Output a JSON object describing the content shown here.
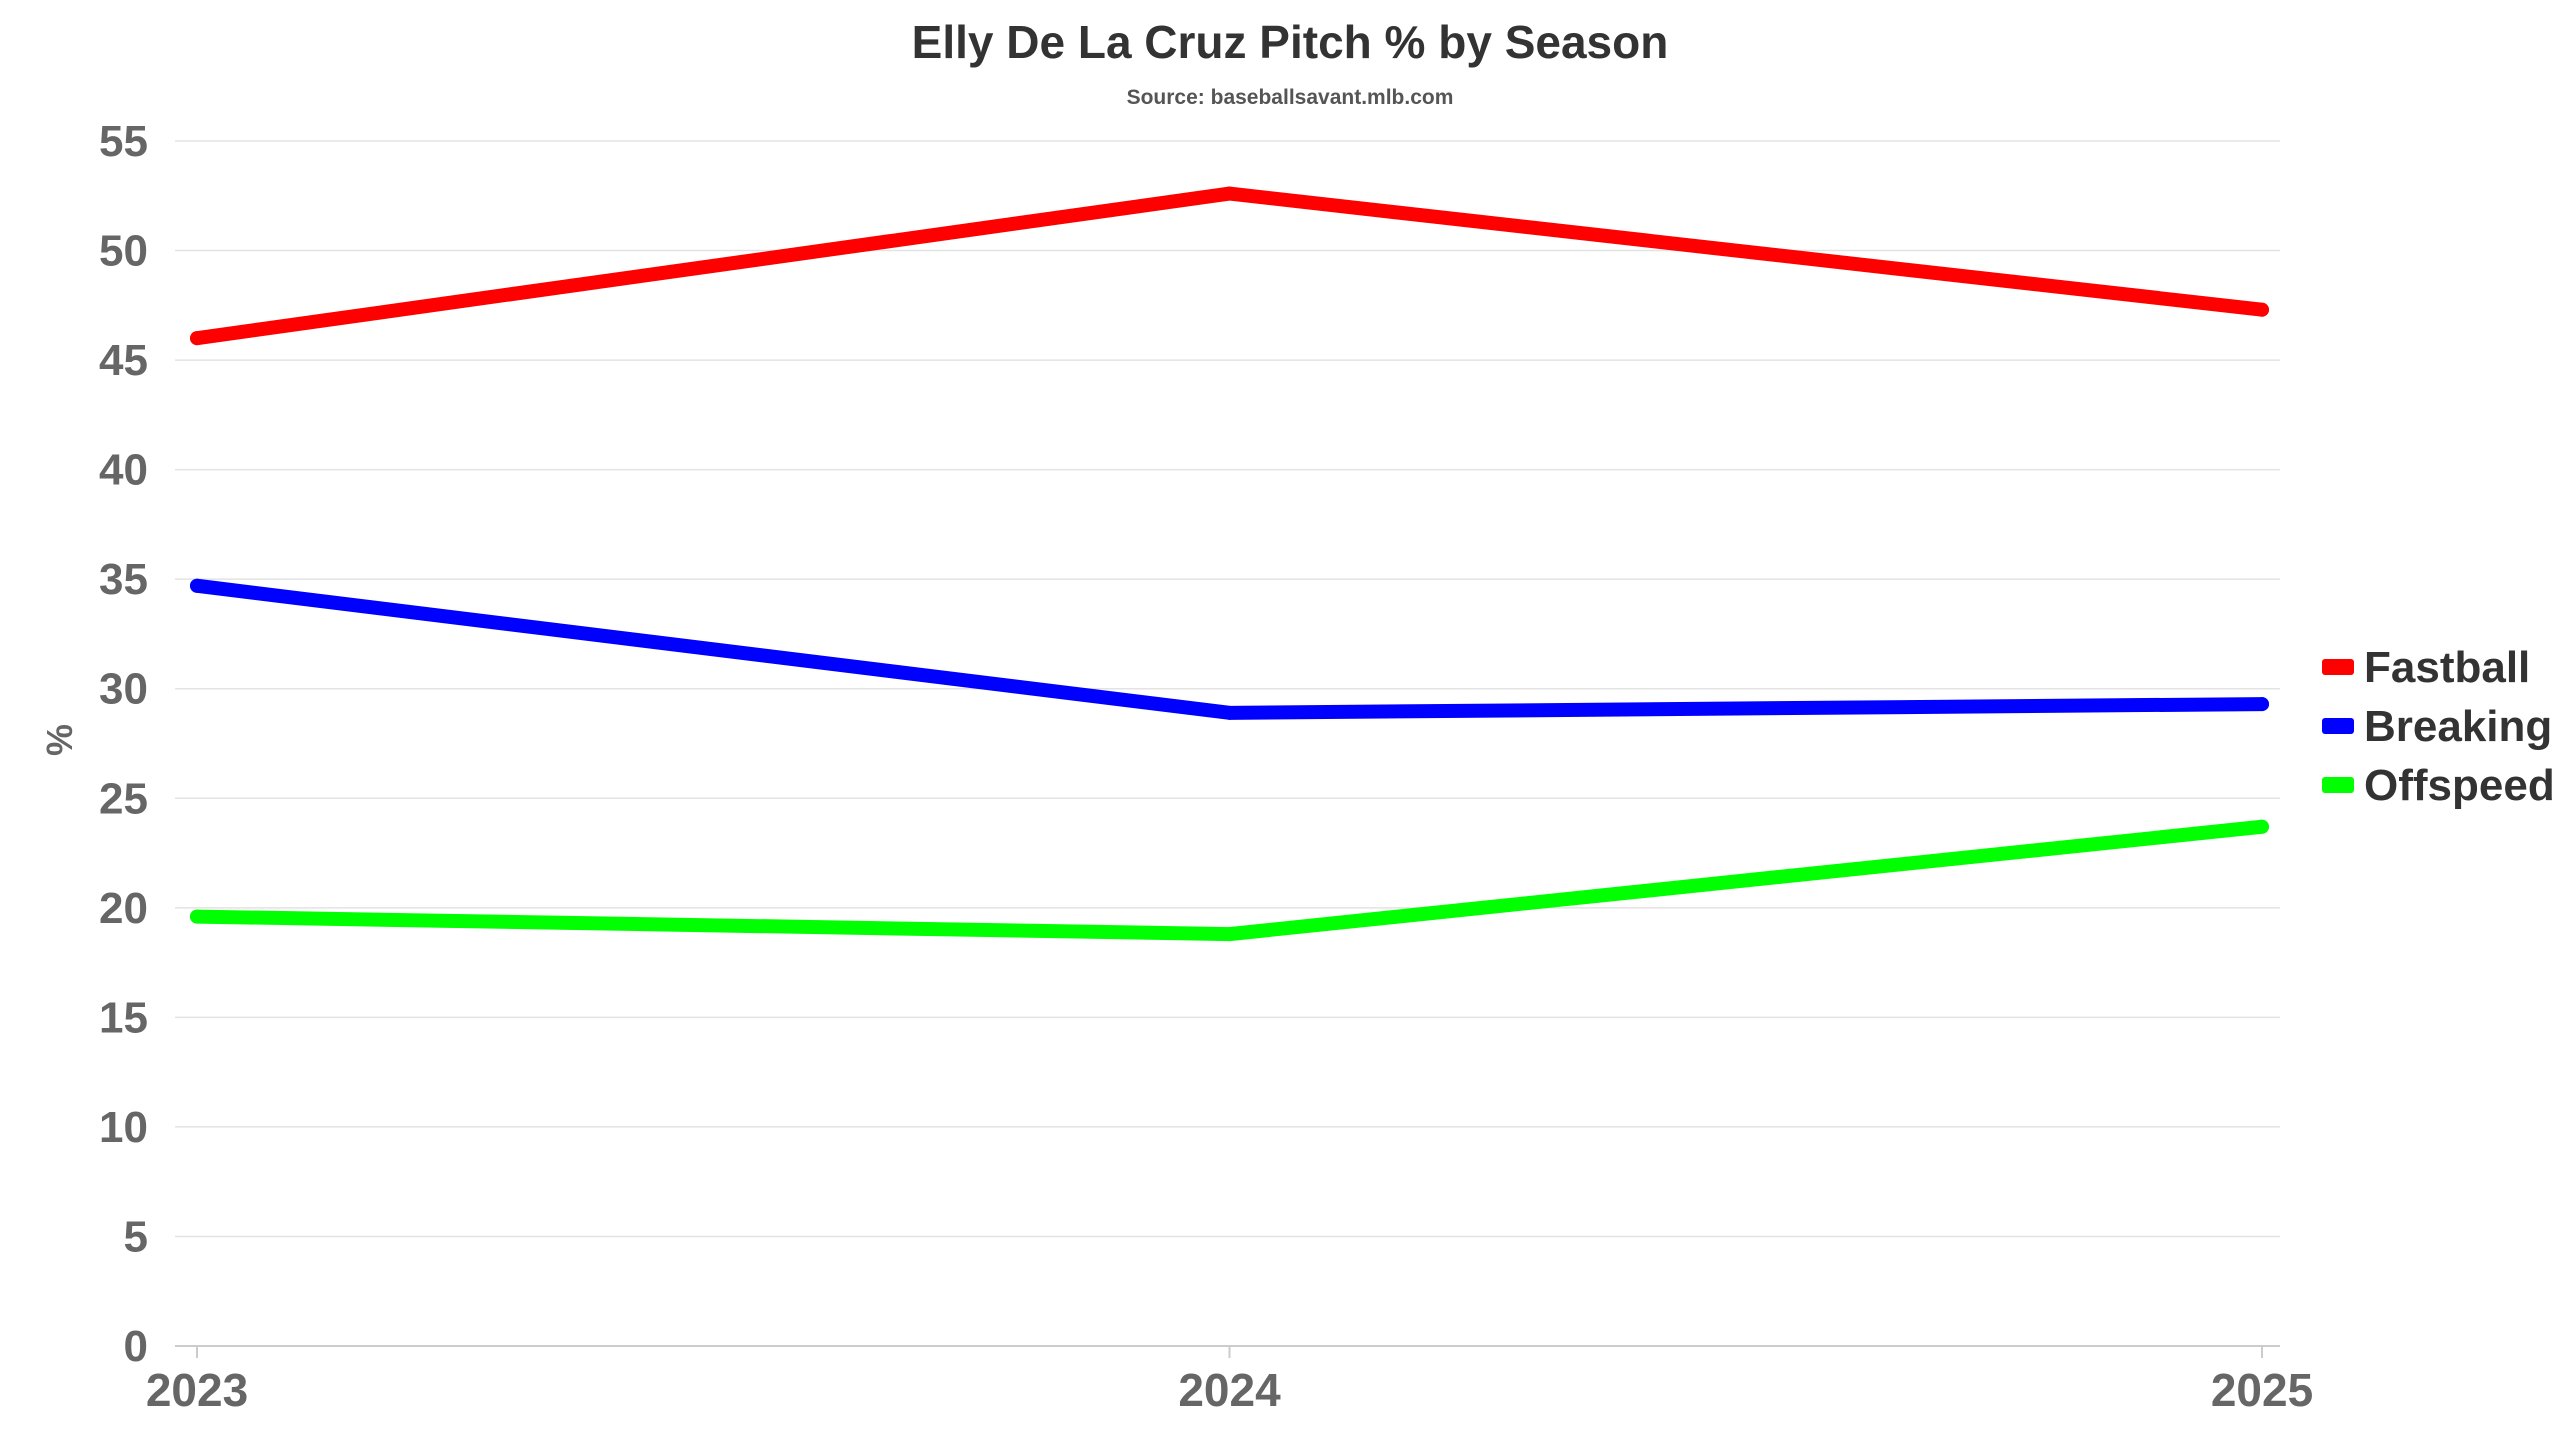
{
  "chart_data": {
    "type": "line",
    "title": "Elly De La Cruz Pitch % by Season",
    "subtitle": "Source: baseballsavant.mlb.com",
    "xlabel": "",
    "ylabel": "%",
    "categories": [
      "2023",
      "2024",
      "2025"
    ],
    "ylim": [
      0,
      55
    ],
    "yticks": [
      0,
      5,
      10,
      15,
      20,
      25,
      30,
      35,
      40,
      45,
      50,
      55
    ],
    "grid": true,
    "legend_position": "right",
    "series": [
      {
        "name": "Fastball",
        "color": "#ff0000",
        "values": [
          46.0,
          52.6,
          47.3
        ]
      },
      {
        "name": "Breaking",
        "color": "#0000ff",
        "values": [
          34.7,
          28.9,
          29.3
        ]
      },
      {
        "name": "Offspeed",
        "color": "#00ff00",
        "values": [
          19.6,
          18.8,
          23.7
        ]
      }
    ]
  }
}
